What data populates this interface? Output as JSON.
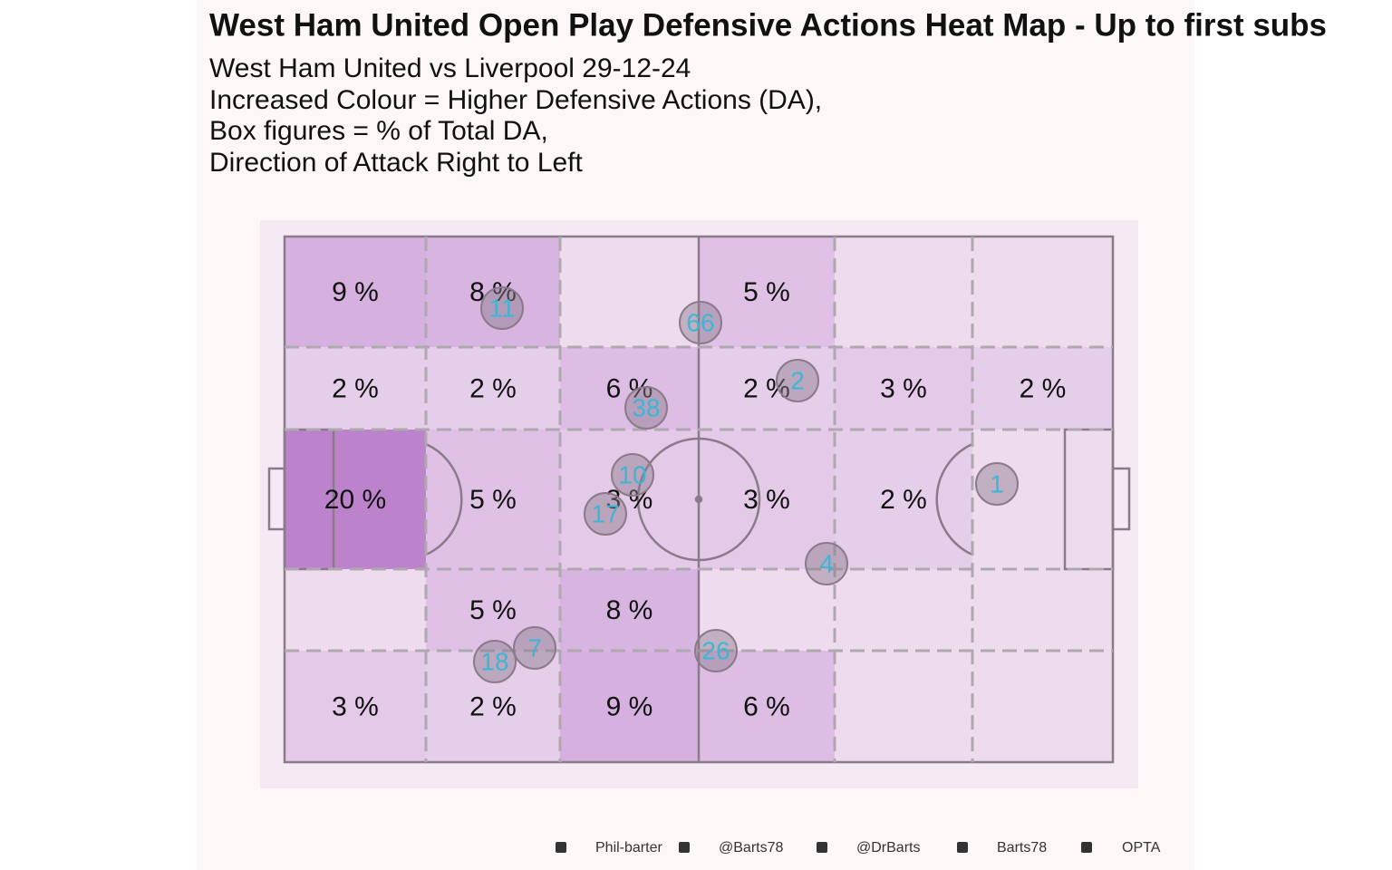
{
  "chart_data": {
    "type": "heatmap",
    "title": "West Ham United Open Play Defensive Actions Heat Map - Up to first subs",
    "subtitle": [
      "West Ham United vs Liverpool 29-12-24",
      "Increased Colour = Higher Defensive Actions (DA),",
      "Box figures = % of Total DA,",
      "Direction of Attack Right to Left"
    ],
    "color": "#a050b8",
    "zones": {
      "values": [
        [
          9,
          8,
          null,
          5,
          null,
          null
        ],
        [
          2,
          2,
          6,
          2,
          3,
          2
        ],
        [
          20,
          5,
          3,
          3,
          2,
          null
        ],
        [
          null,
          5,
          8,
          null,
          null,
          null
        ],
        [
          3,
          2,
          9,
          6,
          null,
          null
        ]
      ],
      "value_labels": [
        [
          "9 %",
          "8 %",
          null,
          "5 %",
          null,
          null
        ],
        [
          "2 %",
          "2 %",
          "6 %",
          "2 %",
          "3 %",
          "2 %"
        ],
        [
          "20 %",
          "5 %",
          "3 %",
          "3 %",
          "2 %",
          null
        ],
        [
          null,
          "5 %",
          "8 %",
          null,
          null,
          null
        ],
        [
          "3 %",
          "2 %",
          "9 %",
          "6 %",
          null,
          null
        ]
      ]
    },
    "players": [
      "11",
      "66",
      "2",
      "38",
      "10",
      "17",
      "4",
      "7",
      "18",
      "26",
      "1"
    ],
    "footer": [
      "Phil-barter",
      "@Barts78",
      "@DrBarts",
      "Barts78",
      "OPTA"
    ]
  }
}
